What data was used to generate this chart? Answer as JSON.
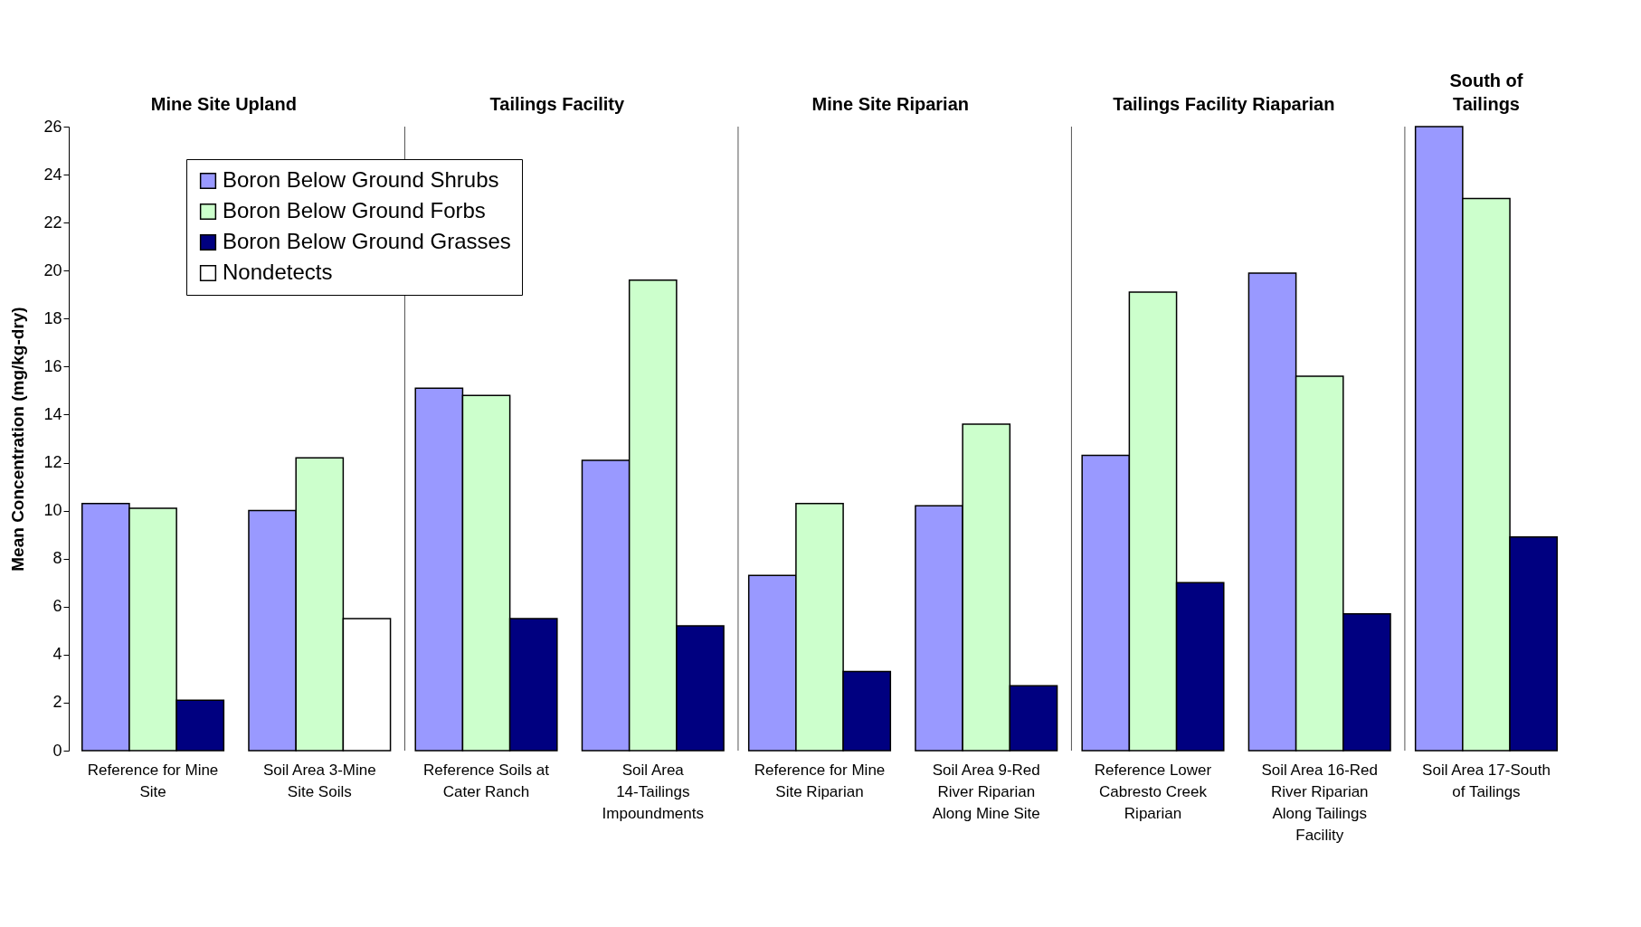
{
  "chart_data": {
    "type": "bar",
    "ylabel": "Mean Concentration (mg/kg-dry)",
    "categories": [
      "Reference for Mine Site",
      "Soil Area 3-Mine Site Soils",
      "Reference Soils at Cater Ranch",
      "Soil Area 14-Tailings Impoundments",
      "Reference for Mine Site Riparian",
      "Soil Area 9-Red River Riparian Along Mine Site",
      "Reference Lower Cabresto Creek Riparian",
      "Soil Area 16-Red River Riparian Along Tailings Facility",
      "Soil Area 17-South of Tailings"
    ],
    "series": [
      {
        "name": "Boron Below Ground Shrubs",
        "color": "#9999ff",
        "values": [
          10.3,
          10.0,
          15.1,
          12.1,
          7.3,
          10.2,
          12.3,
          19.9,
          26.0
        ]
      },
      {
        "name": "Boron Below Ground Forbs",
        "color": "#ccffcc",
        "values": [
          10.1,
          12.2,
          14.8,
          19.6,
          10.3,
          13.6,
          19.1,
          15.6,
          23.0
        ]
      },
      {
        "name": "Boron Below Ground Grasses",
        "color": "#000080",
        "values": [
          2.1,
          null,
          5.5,
          5.2,
          3.3,
          2.7,
          7.0,
          5.7,
          8.9
        ]
      },
      {
        "name": "Nondetects",
        "color": "#ffffff",
        "values": [
          null,
          5.5,
          null,
          null,
          null,
          null,
          null,
          null,
          null
        ]
      }
    ],
    "ylim": [
      0,
      26
    ],
    "yticks": [
      0,
      2,
      4,
      6,
      8,
      10,
      12,
      14,
      16,
      18,
      20,
      22,
      24,
      26
    ],
    "grid": false,
    "legend": "top left",
    "annotations": [
      "Mine Site Upland",
      "Tailings Facility",
      "Mine Site Riparian",
      "Tailings Facility Riaparian",
      "South of Tailings"
    ]
  }
}
